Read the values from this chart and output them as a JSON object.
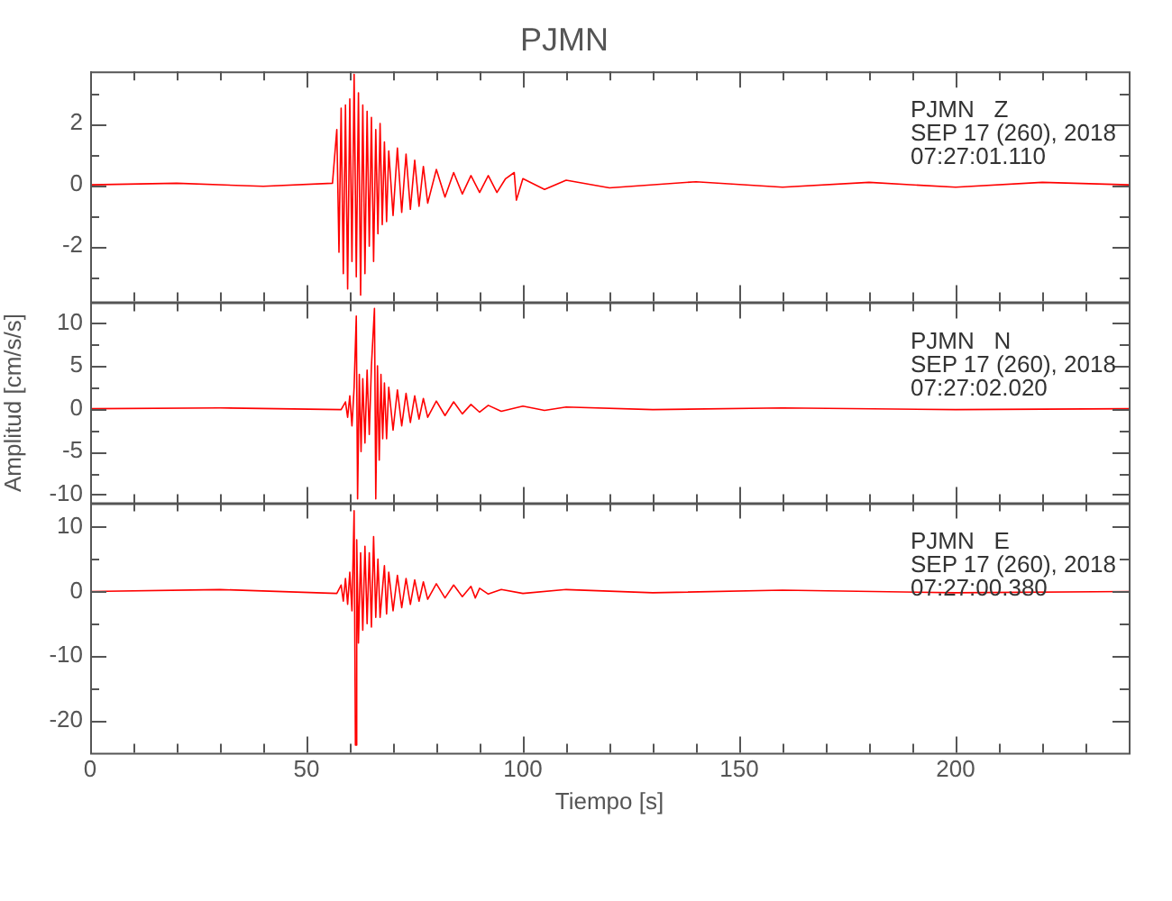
{
  "chart_data": [
    {
      "type": "line",
      "title": "PJMN",
      "tick_labels": "y",
      "x": [
        0,
        20,
        40,
        56,
        57,
        57.5,
        58,
        58.5,
        59,
        59.5,
        60,
        60.5,
        61,
        61.5,
        62,
        62.5,
        63,
        63.5,
        64,
        64.5,
        65,
        65.5,
        66,
        66.5,
        67,
        67.5,
        68,
        68.5,
        69,
        70,
        71,
        72,
        73,
        74,
        75,
        76,
        77,
        78,
        80,
        82,
        84,
        86,
        88,
        90,
        92,
        94,
        96,
        98,
        98.5,
        100,
        105,
        110,
        120,
        140,
        160,
        180,
        200,
        220,
        240
      ],
      "series": [
        {
          "color": "#ff0000",
          "values": [
            0,
            0.05,
            -0.05,
            0.05,
            1.8,
            -2.2,
            2.5,
            -2.9,
            2.6,
            -3.4,
            2.8,
            -2.5,
            3.6,
            -3.0,
            3.0,
            -3.6,
            2.6,
            -2.9,
            2.4,
            -2.0,
            2.2,
            -2.5,
            1.8,
            -1.6,
            2.0,
            -1.3,
            1.4,
            -1.2,
            1.1,
            -1.0,
            1.2,
            -0.9,
            1.0,
            -0.8,
            0.8,
            -0.7,
            0.6,
            -0.6,
            0.5,
            -0.4,
            0.4,
            -0.3,
            0.3,
            -0.25,
            0.3,
            -0.25,
            0.2,
            0.4,
            -0.5,
            0.2,
            -0.15,
            0.15,
            -0.1,
            0.1,
            -0.08,
            0.08,
            -0.08,
            0.08,
            0
          ]
        }
      ],
      "xlim": [
        0,
        240
      ],
      "xticks": [
        0,
        {
          "value": 10,
          "label": null
        },
        {
          "value": 20,
          "label": null
        },
        {
          "value": 30,
          "label": null
        },
        {
          "value": 40,
          "label": null
        },
        50,
        {
          "value": 60,
          "label": null
        },
        {
          "value": 70,
          "label": null
        },
        {
          "value": 80,
          "label": null
        },
        {
          "value": 90,
          "label": null
        },
        100,
        {
          "value": 110,
          "label": null
        },
        {
          "value": 120,
          "label": null
        },
        {
          "value": 130,
          "label": null
        },
        {
          "value": 140,
          "label": null
        },
        150,
        {
          "value": 160,
          "label": null
        },
        {
          "value": 170,
          "label": null
        },
        {
          "value": 180,
          "label": null
        },
        {
          "value": 190,
          "label": null
        },
        200,
        {
          "value": 210,
          "label": null
        },
        {
          "value": 220,
          "label": null
        },
        {
          "value": 230,
          "label": null
        }
      ],
      "ylim": [
        -3.8,
        3.7
      ],
      "yticks": [
        {
          "value": -3,
          "label": null
        },
        -2,
        {
          "value": -1,
          "label": null
        },
        0,
        {
          "value": 1,
          "label": null
        },
        2,
        {
          "value": 3,
          "label": null
        }
      ],
      "annotations": [
        "PJMN   Z",
        "SEP 17 (260), 2018",
        "07:27:01.110"
      ]
    },
    {
      "type": "line",
      "ylabel": "Amplitud [cm/s/s]",
      "tick_labels": "y",
      "x": [
        0,
        30,
        58,
        59,
        59.5,
        60,
        60.5,
        61,
        61.5,
        61.8,
        62.2,
        62.6,
        63,
        63.5,
        64,
        64.5,
        65,
        65.7,
        66,
        66.4,
        66.8,
        67.2,
        67.6,
        68,
        68.5,
        69,
        70,
        71,
        72,
        73,
        74,
        75,
        76,
        77,
        78,
        80,
        82,
        84,
        86,
        88,
        90,
        92,
        95,
        100,
        105,
        110,
        130,
        160,
        200,
        240
      ],
      "series": [
        {
          "color": "#ff0000",
          "values": [
            0,
            0.1,
            -0.1,
            0.8,
            -1.0,
            1.5,
            -2,
            2.5,
            10.8,
            -10.5,
            4,
            -5,
            3.5,
            -4,
            4.5,
            -3,
            5,
            11.7,
            -10.5,
            5,
            -6,
            4,
            -3.5,
            3,
            -3.5,
            2.5,
            -2.5,
            2.2,
            -2,
            1.8,
            -1.6,
            1.5,
            -1.2,
            1.2,
            -1.0,
            0.9,
            -0.8,
            0.8,
            -0.6,
            0.5,
            -0.4,
            0.4,
            -0.3,
            0.3,
            -0.2,
            0.2,
            -0.1,
            0.1,
            -0.1,
            0
          ]
        }
      ],
      "xlim": [
        0,
        240
      ],
      "xticks": [
        0,
        {
          "value": 10,
          "label": null
        },
        {
          "value": 20,
          "label": null
        },
        {
          "value": 30,
          "label": null
        },
        {
          "value": 40,
          "label": null
        },
        50,
        {
          "value": 60,
          "label": null
        },
        {
          "value": 70,
          "label": null
        },
        {
          "value": 80,
          "label": null
        },
        {
          "value": 90,
          "label": null
        },
        100,
        {
          "value": 110,
          "label": null
        },
        {
          "value": 120,
          "label": null
        },
        {
          "value": 130,
          "label": null
        },
        {
          "value": 140,
          "label": null
        },
        150,
        {
          "value": 160,
          "label": null
        },
        {
          "value": 170,
          "label": null
        },
        {
          "value": 180,
          "label": null
        },
        {
          "value": 190,
          "label": null
        },
        200,
        {
          "value": 210,
          "label": null
        },
        {
          "value": 220,
          "label": null
        },
        {
          "value": 230,
          "label": null
        }
      ],
      "ylim": [
        -11,
        12.4
      ],
      "yticks": [
        -10,
        {
          "value": -7.5,
          "label": null
        },
        -5,
        {
          "value": -2.5,
          "label": null
        },
        0,
        {
          "value": 2.5,
          "label": null
        },
        5,
        {
          "value": 7.5,
          "label": null
        },
        10
      ],
      "annotations": [
        "PJMN   N",
        "SEP 17 (260), 2018",
        "07:27:02.020"
      ]
    },
    {
      "type": "line",
      "xlabel": "Tiempo [s]",
      "x": [
        0,
        30,
        57,
        58,
        58.5,
        59,
        59.5,
        60,
        60.5,
        61,
        61.3,
        61.6,
        62,
        62.5,
        63,
        63.5,
        64,
        64.5,
        65,
        65.5,
        66,
        66.5,
        67,
        68,
        68.5,
        69,
        70,
        71,
        72,
        73,
        74,
        75,
        76,
        77,
        78,
        80,
        82,
        84,
        86,
        88,
        89,
        90,
        92,
        95,
        100,
        110,
        130,
        160,
        200,
        240
      ],
      "series": [
        {
          "color": "#ff0000",
          "values": [
            0,
            0.3,
            -0.3,
            1,
            -1.5,
            2,
            -2,
            3,
            -3,
            12.5,
            -23.8,
            8,
            -8,
            6,
            -6,
            7,
            -5,
            6,
            -5.5,
            8.5,
            -4,
            5,
            -4,
            4,
            -3.5,
            3,
            -3,
            2.5,
            -2.5,
            2,
            -2,
            1.8,
            -1.5,
            1.5,
            -1.2,
            1.2,
            -1.0,
            1,
            -0.8,
            0.8,
            -1.0,
            0.5,
            -0.4,
            0.3,
            -0.3,
            0.3,
            -0.2,
            0.2,
            -0.2,
            0
          ]
        }
      ],
      "xlim": [
        0,
        240
      ],
      "xticks": [
        0,
        {
          "value": 10,
          "label": null
        },
        {
          "value": 20,
          "label": null
        },
        {
          "value": 30,
          "label": null
        },
        {
          "value": 40,
          "label": null
        },
        50,
        {
          "value": 60,
          "label": null
        },
        {
          "value": 70,
          "label": null
        },
        {
          "value": 80,
          "label": null
        },
        {
          "value": 90,
          "label": null
        },
        100,
        {
          "value": 110,
          "label": null
        },
        {
          "value": 120,
          "label": null
        },
        {
          "value": 130,
          "label": null
        },
        {
          "value": 140,
          "label": null
        },
        150,
        {
          "value": 160,
          "label": null
        },
        {
          "value": 170,
          "label": null
        },
        {
          "value": 180,
          "label": null
        },
        {
          "value": 190,
          "label": null
        },
        200,
        {
          "value": 210,
          "label": null
        },
        {
          "value": 220,
          "label": null
        },
        {
          "value": 230,
          "label": null
        }
      ],
      "ylim": [
        -25,
        13.8
      ],
      "yticks": [
        -20,
        {
          "value": -15,
          "label": null
        },
        -10,
        {
          "value": -5,
          "label": null
        },
        0,
        {
          "value": 5,
          "label": null
        },
        10
      ],
      "annotations": [
        "PJMN   E",
        "SEP 17 (260), 2018",
        "07:27:00.380"
      ]
    }
  ]
}
